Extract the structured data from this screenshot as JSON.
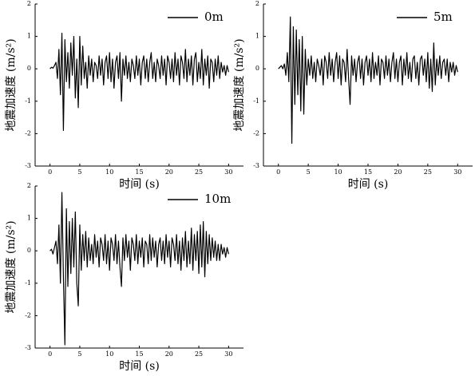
{
  "chart_data": [
    {
      "type": "line",
      "xlabel": "时间 (s)",
      "ylabel": "地震加速度 (m/s²)",
      "legend": "upper right",
      "xlim": [
        -2.5,
        32.5
      ],
      "ylim": [
        -3,
        2
      ],
      "xticks": [
        0,
        5,
        10,
        15,
        20,
        25,
        30
      ],
      "yticks": [
        -3,
        -2,
        -1,
        0,
        1,
        2
      ],
      "x": [
        0,
        0.25,
        0.5,
        0.75,
        1,
        1.25,
        1.5,
        1.75,
        2,
        2.25,
        2.5,
        2.75,
        3,
        3.25,
        3.5,
        3.75,
        4,
        4.25,
        4.5,
        4.75,
        5,
        5.25,
        5.5,
        5.75,
        6,
        6.25,
        6.5,
        6.75,
        7,
        7.25,
        7.5,
        7.75,
        8,
        8.25,
        8.5,
        8.75,
        9,
        9.25,
        9.5,
        9.75,
        10,
        10.25,
        10.5,
        10.75,
        11,
        11.25,
        11.5,
        11.75,
        12,
        12.25,
        12.5,
        12.75,
        13,
        13.25,
        13.5,
        13.75,
        14,
        14.25,
        14.5,
        14.75,
        15,
        15.25,
        15.5,
        15.75,
        16,
        16.25,
        16.5,
        16.75,
        17,
        17.25,
        17.5,
        17.75,
        18,
        18.25,
        18.5,
        18.75,
        19,
        19.25,
        19.5,
        19.75,
        20,
        20.25,
        20.5,
        20.75,
        21,
        21.25,
        21.5,
        21.75,
        22,
        22.25,
        22.5,
        22.75,
        23,
        23.25,
        23.5,
        23.75,
        24,
        24.25,
        24.5,
        24.75,
        25,
        25.25,
        25.5,
        25.75,
        26,
        26.25,
        26.5,
        26.75,
        27,
        27.25,
        27.5,
        27.75,
        28,
        28.25,
        28.5,
        28.75,
        29,
        29.25,
        29.5,
        29.75,
        30
      ],
      "series": [
        {
          "name": "0m",
          "color": "#000000",
          "values": [
            0,
            0.05,
            0.02,
            0.1,
            0.2,
            -0.3,
            0.6,
            -0.8,
            1.1,
            -1.9,
            0.9,
            -0.4,
            0.5,
            -0.6,
            0.8,
            -0.2,
            1.0,
            -0.9,
            0.3,
            -1.2,
            1.0,
            -0.5,
            0.7,
            -0.3,
            0.2,
            -0.6,
            0.4,
            -0.2,
            0.3,
            -0.4,
            0.2,
            0.1,
            -0.3,
            0.4,
            -0.2,
            0.3,
            -0.5,
            0.2,
            0.4,
            -0.3,
            0.5,
            -0.4,
            0.3,
            -0.6,
            0.2,
            0.4,
            -0.3,
            0.5,
            -1.0,
            0.3,
            -0.2,
            0.4,
            -0.3,
            0.2,
            -0.4,
            0.3,
            0.1,
            -0.3,
            0.4,
            -0.2,
            0.3,
            -0.5,
            0.2,
            0.4,
            -0.3,
            0.3,
            -0.4,
            0.2,
            0.5,
            -0.3,
            0.2,
            -0.4,
            0.3,
            0.1,
            -0.3,
            0.4,
            -0.2,
            0.3,
            -0.5,
            0.4,
            0.2,
            -0.3,
            0.3,
            -0.4,
            0.5,
            -0.2,
            0.3,
            -0.5,
            0.4,
            0.2,
            -0.3,
            0.6,
            -0.4,
            0.3,
            -0.2,
            0.4,
            -0.5,
            0.3,
            0.5,
            -0.4,
            0.2,
            -0.3,
            0.6,
            -0.5,
            0.3,
            -0.2,
            0.4,
            -0.6,
            0.3,
            0.2,
            -0.4,
            0.3,
            -0.2,
            0.4,
            -0.3,
            0.2,
            -0.1,
            0.1,
            -0.2,
            0.1,
            -0.1
          ]
        }
      ]
    },
    {
      "type": "line",
      "xlabel": "时间 (s)",
      "ylabel": "地震加速度 (m/s²)",
      "legend": "upper right",
      "xlim": [
        -2.5,
        32.5
      ],
      "ylim": [
        -3,
        2
      ],
      "xticks": [
        0,
        5,
        10,
        15,
        20,
        25,
        30
      ],
      "yticks": [
        -3,
        -2,
        -1,
        0,
        1,
        2
      ],
      "x": [
        0,
        0.25,
        0.5,
        0.75,
        1,
        1.25,
        1.5,
        1.75,
        2,
        2.25,
        2.5,
        2.75,
        3,
        3.25,
        3.5,
        3.75,
        4,
        4.25,
        4.5,
        4.75,
        5,
        5.25,
        5.5,
        5.75,
        6,
        6.25,
        6.5,
        6.75,
        7,
        7.25,
        7.5,
        7.75,
        8,
        8.25,
        8.5,
        8.75,
        9,
        9.25,
        9.5,
        9.75,
        10,
        10.25,
        10.5,
        10.75,
        11,
        11.25,
        11.5,
        11.75,
        12,
        12.25,
        12.5,
        12.75,
        13,
        13.25,
        13.5,
        13.75,
        14,
        14.25,
        14.5,
        14.75,
        15,
        15.25,
        15.5,
        15.75,
        16,
        16.25,
        16.5,
        16.75,
        17,
        17.25,
        17.5,
        17.75,
        18,
        18.25,
        18.5,
        18.75,
        19,
        19.25,
        19.5,
        19.75,
        20,
        20.25,
        20.5,
        20.75,
        21,
        21.25,
        21.5,
        21.75,
        22,
        22.25,
        22.5,
        22.75,
        23,
        23.25,
        23.5,
        23.75,
        24,
        24.25,
        24.5,
        24.75,
        25,
        25.25,
        25.5,
        25.75,
        26,
        26.25,
        26.5,
        26.75,
        27,
        27.25,
        27.5,
        27.75,
        28,
        28.25,
        28.5,
        28.75,
        29,
        29.25,
        29.5,
        29.75,
        30
      ],
      "series": [
        {
          "name": "5m",
          "color": "#000000",
          "values": [
            0,
            0.05,
            0.1,
            0.0,
            0.15,
            -0.2,
            0.5,
            -0.4,
            1.6,
            -2.3,
            1.3,
            -1.1,
            1.2,
            -0.8,
            0.9,
            -1.3,
            1.0,
            -1.4,
            0.6,
            -0.5,
            0.3,
            -0.2,
            0.4,
            -0.3,
            0.2,
            -0.4,
            0.3,
            0.1,
            -0.2,
            0.3,
            -0.5,
            0.4,
            0.2,
            -0.3,
            0.5,
            -0.2,
            0.3,
            -0.4,
            0.2,
            0.5,
            -0.3,
            0.4,
            -0.5,
            0.3,
            0.2,
            -0.4,
            0.6,
            -0.3,
            -1.1,
            0.4,
            -0.2,
            0.3,
            -0.4,
            0.2,
            0.4,
            -0.3,
            0.3,
            -0.5,
            0.2,
            0.4,
            -0.2,
            0.3,
            -0.4,
            0.5,
            -0.3,
            0.2,
            -0.2,
            0.4,
            -0.5,
            0.3,
            0.2,
            -0.3,
            0.4,
            -0.2,
            0.3,
            -0.4,
            0.2,
            0.5,
            -0.3,
            0.3,
            -0.4,
            0.2,
            0.4,
            -0.5,
            0.3,
            -0.2,
            0.5,
            -0.3,
            0.2,
            -0.4,
            0.3,
            0.4,
            -0.3,
            0.2,
            -0.5,
            0.3,
            0.4,
            -0.2,
            0.3,
            -0.4,
            0.5,
            -0.6,
            0.3,
            -0.7,
            0.8,
            -0.5,
            0.3,
            -0.2,
            0.4,
            -0.3,
            0.2,
            0.3,
            -0.2,
            0.3,
            -0.4,
            0.2,
            -0.1,
            0.2,
            -0.2,
            0.1,
            -0.1
          ]
        }
      ]
    },
    {
      "type": "line",
      "xlabel": "时间 (s)",
      "ylabel": "地震加速度 (m/s²)",
      "legend": "upper right",
      "xlim": [
        -2.5,
        32.5
      ],
      "ylim": [
        -3,
        2
      ],
      "xticks": [
        0,
        5,
        10,
        15,
        20,
        25,
        30
      ],
      "yticks": [
        -3,
        -2,
        -1,
        0,
        1,
        2
      ],
      "x": [
        0,
        0.25,
        0.5,
        0.75,
        1,
        1.25,
        1.5,
        1.75,
        2,
        2.25,
        2.5,
        2.75,
        3,
        3.25,
        3.5,
        3.75,
        4,
        4.25,
        4.5,
        4.75,
        5,
        5.25,
        5.5,
        5.75,
        6,
        6.25,
        6.5,
        6.75,
        7,
        7.25,
        7.5,
        7.75,
        8,
        8.25,
        8.5,
        8.75,
        9,
        9.25,
        9.5,
        9.75,
        10,
        10.25,
        10.5,
        10.75,
        11,
        11.25,
        11.5,
        11.75,
        12,
        12.25,
        12.5,
        12.75,
        13,
        13.25,
        13.5,
        13.75,
        14,
        14.25,
        14.5,
        14.75,
        15,
        15.25,
        15.5,
        15.75,
        16,
        16.25,
        16.5,
        16.75,
        17,
        17.25,
        17.5,
        17.75,
        18,
        18.25,
        18.5,
        18.75,
        19,
        19.25,
        19.5,
        19.75,
        20,
        20.25,
        20.5,
        20.75,
        21,
        21.25,
        21.5,
        21.75,
        22,
        22.25,
        22.5,
        22.75,
        23,
        23.25,
        23.5,
        23.75,
        24,
        24.25,
        24.5,
        24.75,
        25,
        25.25,
        25.5,
        25.75,
        26,
        26.25,
        26.5,
        26.75,
        27,
        27.25,
        27.5,
        27.75,
        28,
        28.25,
        28.5,
        28.75,
        29,
        29.25,
        29.5,
        29.75,
        30
      ],
      "series": [
        {
          "name": "10m",
          "color": "#000000",
          "values": [
            0,
            0.05,
            -0.1,
            0.1,
            0.3,
            -0.4,
            0.8,
            -1.0,
            1.8,
            -0.8,
            -2.9,
            1.3,
            -1.1,
            0.9,
            -0.7,
            1.0,
            -0.5,
            1.2,
            -1.0,
            -1.7,
            0.8,
            -0.6,
            0.5,
            -0.3,
            0.6,
            -0.5,
            0.4,
            -0.3,
            0.2,
            -0.4,
            0.5,
            -0.2,
            0.3,
            -0.5,
            0.4,
            0.2,
            -0.3,
            0.5,
            -0.4,
            0.3,
            -0.6,
            0.4,
            0.2,
            -0.3,
            0.5,
            -0.4,
            0.3,
            -0.5,
            -1.1,
            0.4,
            -0.3,
            0.5,
            -0.2,
            0.3,
            -0.6,
            0.4,
            0.2,
            -0.3,
            0.5,
            -0.4,
            0.3,
            -0.2,
            0.4,
            -0.5,
            0.3,
            0.2,
            -0.4,
            0.5,
            -0.3,
            0.4,
            -0.2,
            0.3,
            -0.5,
            0.2,
            0.4,
            -0.3,
            0.3,
            -0.4,
            0.5,
            -0.2,
            0.3,
            -0.5,
            0.4,
            0.2,
            -0.3,
            0.5,
            -0.4,
            0.3,
            -0.6,
            0.4,
            -0.3,
            0.6,
            -0.5,
            0.3,
            -0.4,
            0.7,
            -0.6,
            0.5,
            -0.3,
            0.6,
            -0.7,
            0.8,
            -0.5,
            0.9,
            -0.8,
            0.6,
            -0.4,
            0.5,
            -0.3,
            0.4,
            -0.2,
            0.3,
            -0.3,
            0.2,
            -0.3,
            0.2,
            -0.1,
            0.1,
            -0.2,
            0.1,
            -0.1
          ]
        }
      ]
    }
  ]
}
